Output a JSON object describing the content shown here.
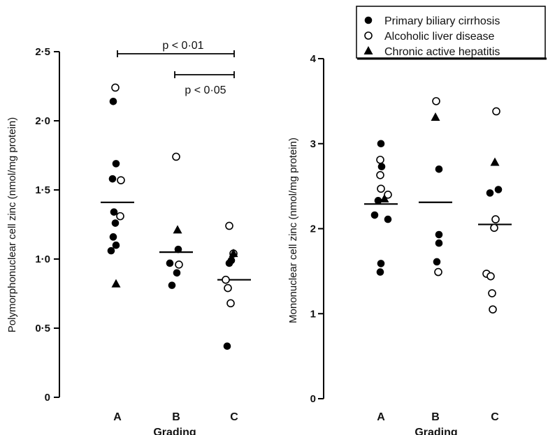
{
  "chart_data": [
    {
      "type": "scatter",
      "ylabel": "Polymorphonuclear cell zinc (nmol/mg protein)",
      "xlabel": "Grading",
      "categories": [
        "A",
        "B",
        "C"
      ],
      "ylim": [
        0,
        2.5
      ],
      "yticks": [
        {
          "value": 0,
          "label": "0"
        },
        {
          "value": 0.5,
          "label": "0·5"
        },
        {
          "value": 1.0,
          "label": "1·0"
        },
        {
          "value": 1.5,
          "label": "1·5"
        },
        {
          "value": 2.0,
          "label": "2·0"
        },
        {
          "value": 2.5,
          "label": "2·5"
        }
      ],
      "means": [
        1.41,
        1.05,
        0.85
      ],
      "series": [
        {
          "name": "Primary biliary cirrhosis",
          "marker": "filled-circle",
          "points": [
            {
              "x": "A",
              "y": 2.14
            },
            {
              "x": "A",
              "y": 1.69
            },
            {
              "x": "A",
              "y": 1.58
            },
            {
              "x": "A",
              "y": 1.34
            },
            {
              "x": "A",
              "y": 1.26
            },
            {
              "x": "A",
              "y": 1.16
            },
            {
              "x": "A",
              "y": 1.1
            },
            {
              "x": "A",
              "y": 1.06
            },
            {
              "x": "B",
              "y": 1.07
            },
            {
              "x": "B",
              "y": 0.97
            },
            {
              "x": "B",
              "y": 0.9
            },
            {
              "x": "B",
              "y": 0.81
            },
            {
              "x": "C",
              "y": 0.99
            },
            {
              "x": "C",
              "y": 0.97
            },
            {
              "x": "C",
              "y": 0.37
            }
          ]
        },
        {
          "name": "Alcoholic liver disease",
          "marker": "open-circle",
          "points": [
            {
              "x": "A",
              "y": 2.24
            },
            {
              "x": "A",
              "y": 1.57
            },
            {
              "x": "A",
              "y": 1.31
            },
            {
              "x": "B",
              "y": 1.74
            },
            {
              "x": "B",
              "y": 0.96
            },
            {
              "x": "C",
              "y": 1.24
            },
            {
              "x": "C",
              "y": 1.04
            },
            {
              "x": "C",
              "y": 0.85
            },
            {
              "x": "C",
              "y": 0.79
            },
            {
              "x": "C",
              "y": 0.68
            }
          ]
        },
        {
          "name": "Chronic active hepatitis",
          "marker": "filled-triangle",
          "points": [
            {
              "x": "A",
              "y": 0.82
            },
            {
              "x": "B",
              "y": 1.21
            },
            {
              "x": "C",
              "y": 1.04
            }
          ]
        }
      ],
      "annotations": [
        {
          "text": "p < 0·01",
          "from": "A",
          "to": "C"
        },
        {
          "text": "p < 0·05",
          "from": "B",
          "to": "C"
        }
      ]
    },
    {
      "type": "scatter",
      "ylabel": "Mononuclear cell zinc (nmol/mg protein)",
      "xlabel": "Grading",
      "categories": [
        "A",
        "B",
        "C"
      ],
      "ylim": [
        0,
        4
      ],
      "yticks": [
        {
          "value": 0,
          "label": "0"
        },
        {
          "value": 1,
          "label": "1"
        },
        {
          "value": 2,
          "label": "2"
        },
        {
          "value": 3,
          "label": "3"
        },
        {
          "value": 4,
          "label": "4"
        }
      ],
      "means": [
        2.29,
        2.31,
        2.05
      ],
      "series": [
        {
          "name": "Primary biliary cirrhosis",
          "marker": "filled-circle",
          "points": [
            {
              "x": "A",
              "y": 3.0
            },
            {
              "x": "A",
              "y": 2.73
            },
            {
              "x": "A",
              "y": 2.33
            },
            {
              "x": "A",
              "y": 2.16
            },
            {
              "x": "A",
              "y": 2.11
            },
            {
              "x": "A",
              "y": 1.59
            },
            {
              "x": "A",
              "y": 1.49
            },
            {
              "x": "B",
              "y": 2.7
            },
            {
              "x": "B",
              "y": 1.93
            },
            {
              "x": "B",
              "y": 1.83
            },
            {
              "x": "B",
              "y": 1.61
            },
            {
              "x": "C",
              "y": 2.46
            },
            {
              "x": "C",
              "y": 2.42
            }
          ]
        },
        {
          "name": "Alcoholic liver disease",
          "marker": "open-circle",
          "points": [
            {
              "x": "A",
              "y": 2.81
            },
            {
              "x": "A",
              "y": 2.63
            },
            {
              "x": "A",
              "y": 2.47
            },
            {
              "x": "A",
              "y": 2.4
            },
            {
              "x": "B",
              "y": 3.5
            },
            {
              "x": "B",
              "y": 1.49
            },
            {
              "x": "C",
              "y": 3.38
            },
            {
              "x": "C",
              "y": 2.11
            },
            {
              "x": "C",
              "y": 2.01
            },
            {
              "x": "C",
              "y": 1.47
            },
            {
              "x": "C",
              "y": 1.44
            },
            {
              "x": "C",
              "y": 1.24
            },
            {
              "x": "C",
              "y": 1.05
            }
          ]
        },
        {
          "name": "Chronic active hepatitis",
          "marker": "filled-triangle",
          "points": [
            {
              "x": "A",
              "y": 2.35
            },
            {
              "x": "B",
              "y": 3.31
            },
            {
              "x": "C",
              "y": 2.78
            }
          ]
        }
      ]
    }
  ],
  "legend": {
    "items": [
      {
        "label": "Primary biliary cirrhosis",
        "marker": "filled-circle"
      },
      {
        "label": "Alcoholic liver disease",
        "marker": "open-circle"
      },
      {
        "label": "Chronic active hepatitis",
        "marker": "filled-triangle"
      }
    ]
  }
}
